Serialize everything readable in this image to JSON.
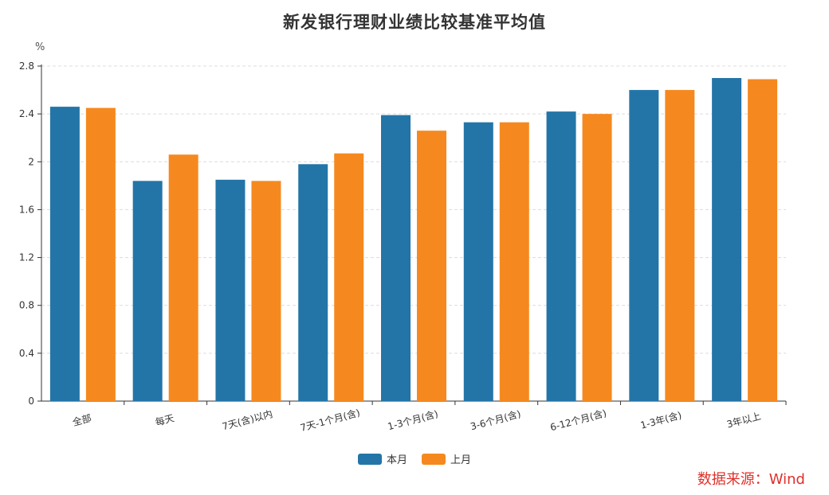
{
  "chart_data": {
    "type": "bar",
    "title": "新发银行理财业绩比较基准平均值",
    "unit": "%",
    "categories": [
      "全部",
      "每天",
      "7天(含)以内",
      "7天-1个月(含)",
      "1-3个月(含)",
      "3-6个月(含)",
      "6-12个月(含)",
      "1-3年(含)",
      "3年以上"
    ],
    "series": [
      {
        "name": "本月",
        "color": "#2375a8",
        "values": [
          2.46,
          1.84,
          1.85,
          1.98,
          2.39,
          2.33,
          2.42,
          2.6,
          2.7
        ]
      },
      {
        "name": "上月",
        "color": "#f5891f",
        "values": [
          2.45,
          2.06,
          1.84,
          2.07,
          2.26,
          2.33,
          2.4,
          2.6,
          2.69
        ]
      }
    ],
    "ylim": [
      0,
      2.8
    ],
    "yticks": [
      "0",
      "0.4",
      "0.8",
      "1.2",
      "1.6",
      "2",
      "2.4",
      "2.8"
    ],
    "grid": true,
    "legend_position": "bottom-center",
    "source_note": "数据来源：Wind"
  }
}
